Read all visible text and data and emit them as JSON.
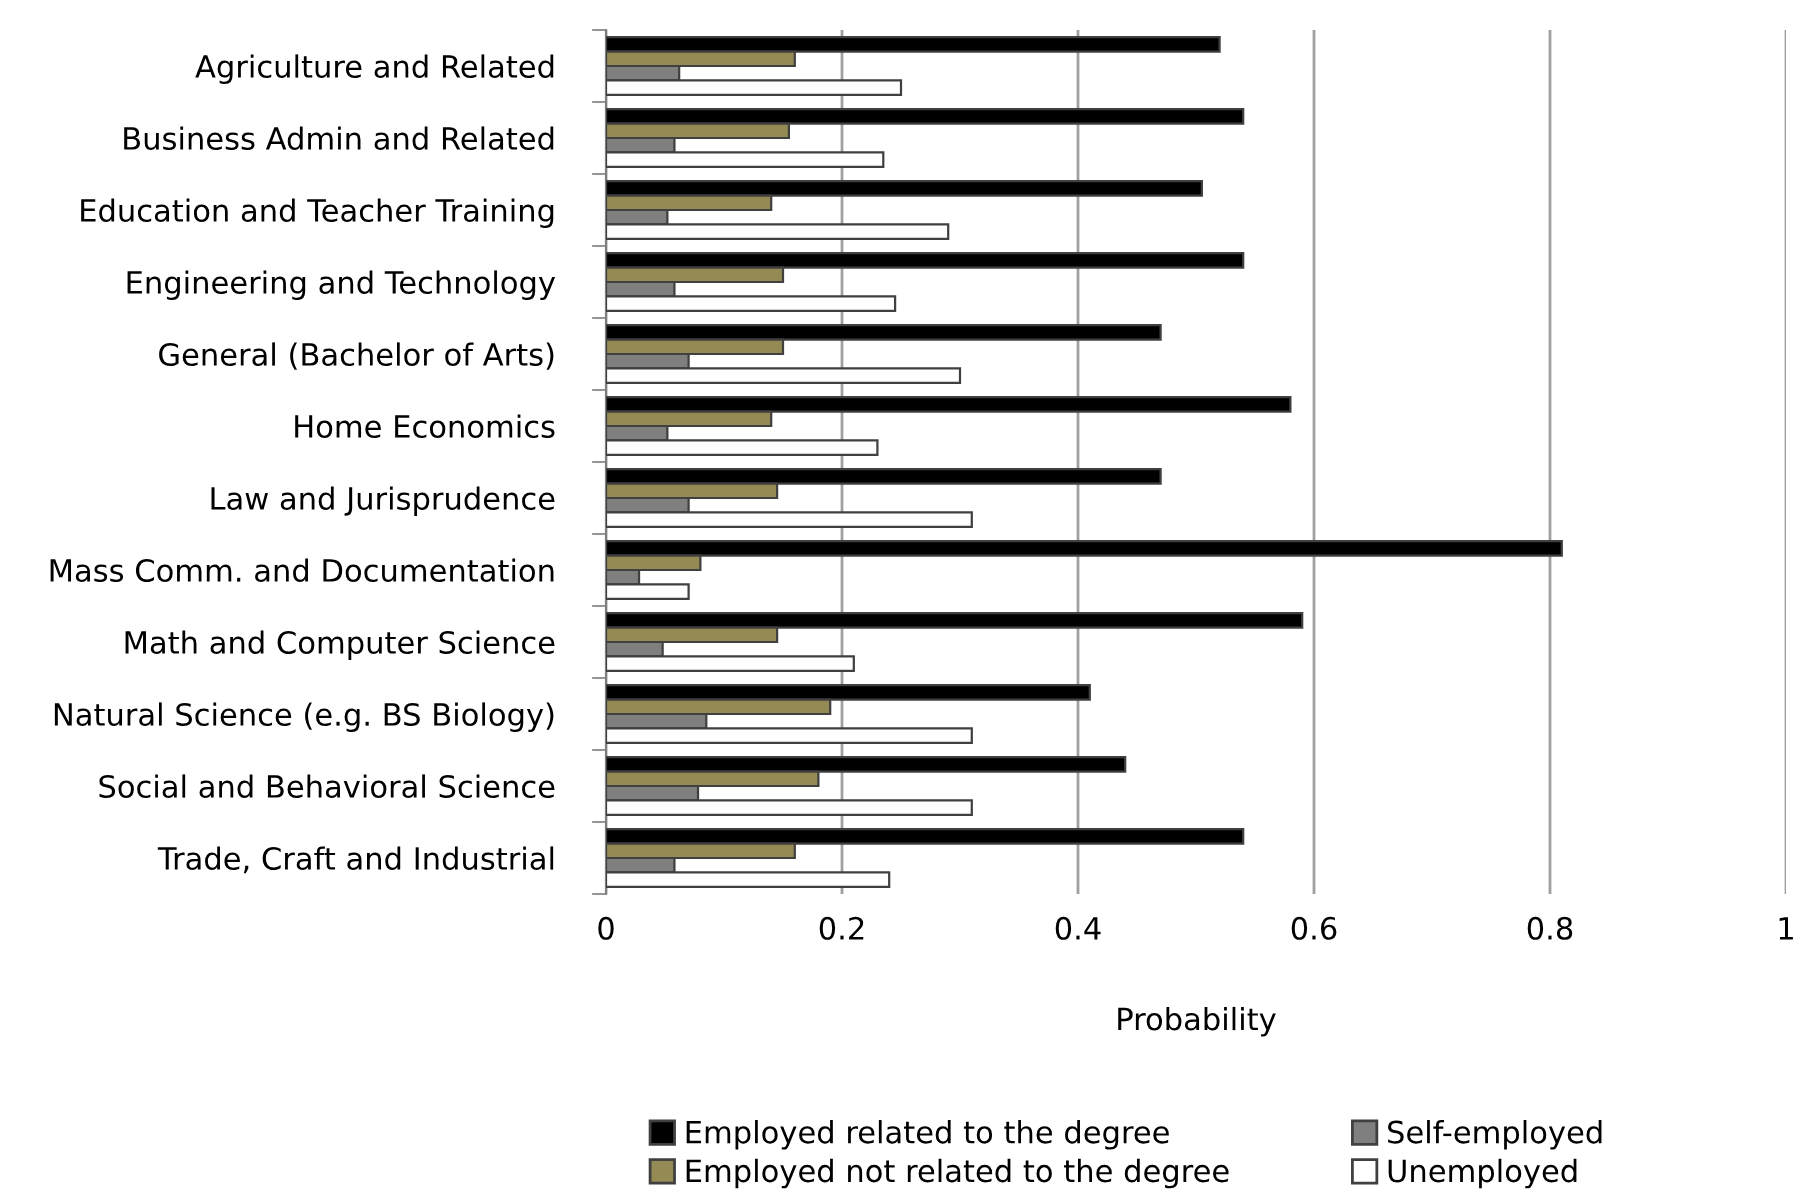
{
  "chart_data": {
    "type": "bar",
    "orientation": "horizontal",
    "xlabel": "Probability",
    "categories": [
      "Agriculture and Related",
      "Business Admin and Related",
      "Education and Teacher Training",
      "Engineering and Technology",
      "General (Bachelor of Arts)",
      "Home Economics",
      "Law and Jurisprudence",
      "Mass Comm. and Documentation",
      "Math and Computer Science",
      "Natural Science (e.g. BS Biology)",
      "Social and Behavioral Science",
      "Trade, Craft and Industrial"
    ],
    "series": [
      {
        "name": "Employed related to the degree",
        "color": "#000000",
        "values": [
          0.52,
          0.54,
          0.505,
          0.54,
          0.47,
          0.58,
          0.47,
          0.81,
          0.59,
          0.41,
          0.44,
          0.54
        ]
      },
      {
        "name": "Employed not related to the degree",
        "color": "#948a54",
        "values": [
          0.16,
          0.155,
          0.14,
          0.15,
          0.15,
          0.14,
          0.145,
          0.08,
          0.145,
          0.19,
          0.18,
          0.16
        ]
      },
      {
        "name": "Self-employed",
        "color": "#7f7f7f",
        "values": [
          0.062,
          0.058,
          0.052,
          0.058,
          0.07,
          0.052,
          0.07,
          0.028,
          0.048,
          0.085,
          0.078,
          0.058
        ]
      },
      {
        "name": "Unemployed",
        "color": "#ffffff",
        "values": [
          0.25,
          0.235,
          0.29,
          0.245,
          0.3,
          0.23,
          0.31,
          0.07,
          0.21,
          0.31,
          0.31,
          0.24
        ]
      }
    ],
    "xlim": [
      0,
      1
    ],
    "xticks": [
      0,
      0.2,
      0.4,
      0.6,
      0.8,
      1
    ],
    "grid": "x",
    "legend": "bottom"
  }
}
